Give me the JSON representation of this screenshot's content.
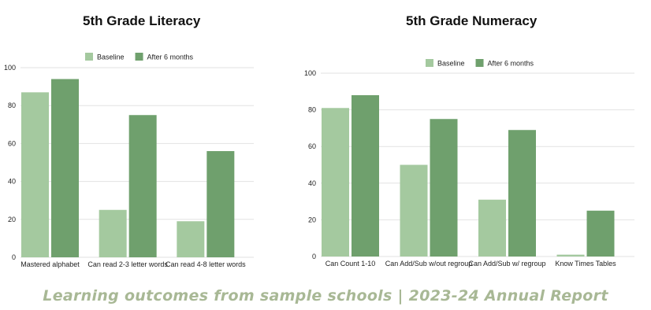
{
  "colors": {
    "baseline": "#a4c99f",
    "after": "#6fa06d",
    "grid": "#e2e2e2",
    "caption": "#a8b895"
  },
  "caption": "Learning outcomes from sample schools | 2023-24 Annual Report",
  "chart_data": [
    {
      "type": "bar",
      "title": "5th Grade Literacy",
      "categories": [
        "Mastered alphabet",
        "Can read 2-3 letter words",
        "Can read 4-8 letter words"
      ],
      "series": [
        {
          "name": "Baseline",
          "values": [
            87,
            25,
            19
          ]
        },
        {
          "name": "After 6 months",
          "values": [
            94,
            75,
            56
          ]
        }
      ],
      "ylim": [
        0,
        100
      ],
      "yticks": [
        0,
        20,
        40,
        60,
        80,
        100
      ],
      "legend": "top-center",
      "grid": true
    },
    {
      "type": "bar",
      "title": "5th Grade Numeracy",
      "categories": [
        "Can Count 1-10",
        "Can Add/Sub w/out regroup",
        "Can Add/Sub w/ regroup",
        "Know Times Tables"
      ],
      "series": [
        {
          "name": "Baseline",
          "values": [
            81,
            50,
            31,
            1
          ]
        },
        {
          "name": "After 6 months",
          "values": [
            88,
            75,
            69,
            25
          ]
        }
      ],
      "ylim": [
        0,
        100
      ],
      "yticks": [
        0,
        20,
        40,
        60,
        80,
        100
      ],
      "legend": "top-center",
      "grid": true
    }
  ]
}
